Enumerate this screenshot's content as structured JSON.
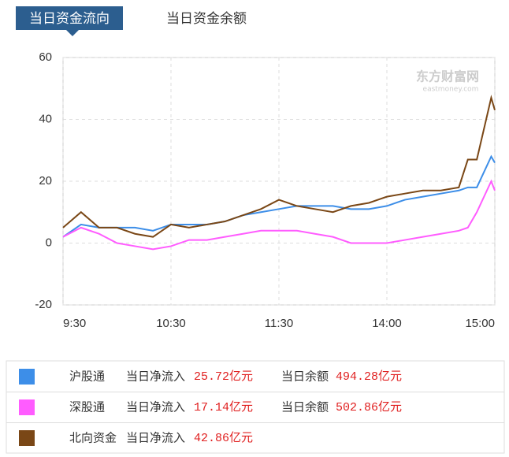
{
  "tabs": [
    "当日资金流向",
    "当日资金余额"
  ],
  "watermark": "东方财富网",
  "watermark_sub": "eastmoney.com",
  "chart_data": {
    "type": "line",
    "x": [
      0,
      10,
      20,
      30,
      40,
      50,
      60,
      70,
      80,
      90,
      100,
      110,
      120,
      130,
      140,
      150,
      160,
      170,
      180,
      190,
      200,
      210,
      220,
      225,
      230,
      238,
      240
    ],
    "xlim": [
      0,
      240
    ],
    "xticks": [
      {
        "value": 0,
        "label": "9:30"
      },
      {
        "value": 60,
        "label": "10:30"
      },
      {
        "value": 120,
        "label": "11:30"
      },
      {
        "value": 180,
        "label": "14:00"
      },
      {
        "value": 240,
        "label": "15:00"
      }
    ],
    "ylim": [
      -20,
      60
    ],
    "yticks": [
      -20,
      0,
      20,
      40,
      60
    ],
    "grid": true,
    "series": [
      {
        "name": "沪股通",
        "color": "#3d8ee8",
        "values": [
          2,
          6,
          5,
          5,
          5,
          4,
          6,
          6,
          6,
          7,
          9,
          10,
          11,
          12,
          12,
          12,
          11,
          11,
          12,
          14,
          15,
          16,
          17,
          18,
          18,
          28,
          26
        ]
      },
      {
        "name": "深股通",
        "color": "#ff5cff",
        "values": [
          2,
          5,
          3,
          0,
          -1,
          -2,
          -1,
          1,
          1,
          2,
          3,
          4,
          4,
          4,
          3,
          2,
          0,
          0,
          0,
          1,
          2,
          3,
          4,
          5,
          10,
          20,
          17
        ]
      },
      {
        "name": "北向资金",
        "color": "#7a4716",
        "values": [
          5,
          10,
          5,
          5,
          3,
          2,
          6,
          5,
          6,
          7,
          9,
          11,
          14,
          12,
          11,
          10,
          12,
          13,
          15,
          16,
          17,
          17,
          18,
          27,
          27,
          47,
          43
        ]
      }
    ]
  },
  "summary": [
    {
      "inflow_label": "当日净流入",
      "inflow": "25.72亿元",
      "balance_label": "当日余额",
      "balance": "494.28亿元"
    },
    {
      "inflow_label": "当日净流入",
      "inflow": "17.14亿元",
      "balance_label": "当日余额",
      "balance": "502.86亿元"
    },
    {
      "inflow_label": "当日净流入",
      "inflow": "42.86亿元"
    }
  ]
}
